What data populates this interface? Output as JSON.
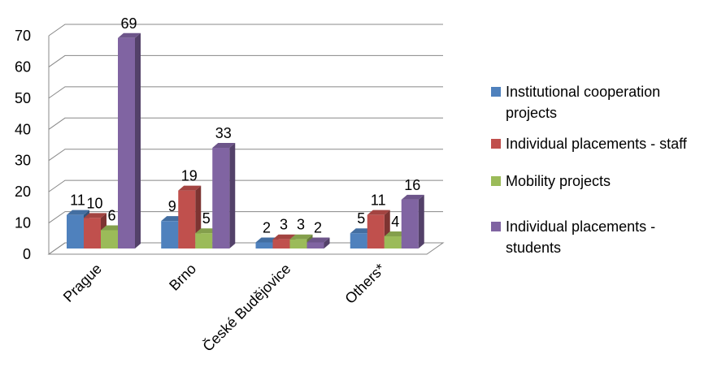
{
  "chart_data": {
    "type": "bar3d",
    "categories": [
      "Prague",
      "Brno",
      "České Budějovice",
      "Others*"
    ],
    "series": [
      {
        "name": "Institutional cooperation projects",
        "color": "#4f81bd",
        "values": [
          11,
          9,
          2,
          5
        ]
      },
      {
        "name": "Individual placements - staff",
        "color": "#c0504d",
        "values": [
          10,
          19,
          3,
          11
        ]
      },
      {
        "name": "Mobility projects",
        "color": "#9bbb59",
        "values": [
          6,
          5,
          3,
          4
        ]
      },
      {
        "name": "Individual placements - students",
        "color": "#8064a2",
        "values": [
          69,
          33,
          2,
          16
        ]
      }
    ],
    "ylim": [
      0,
      70
    ],
    "yticks": [
      0,
      10,
      20,
      30,
      40,
      50,
      60,
      70
    ],
    "grid": true,
    "legend": "right"
  }
}
